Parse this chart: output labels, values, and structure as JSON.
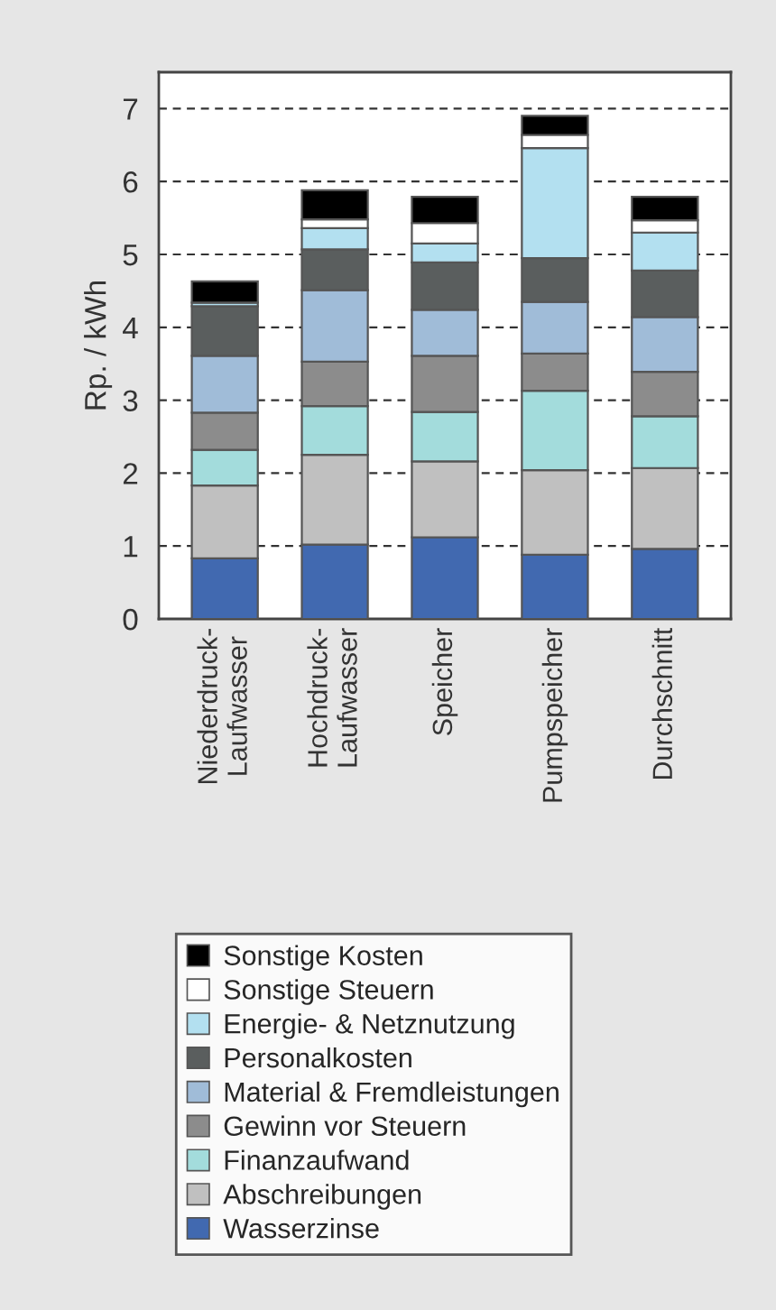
{
  "chart_data": {
    "type": "bar",
    "stacked": true,
    "ylabel": "Rp. / kWh",
    "categories": [
      "Niederdruck-\nLaufwasser",
      "Hochdruck-\nLaufwasser",
      "Speicher",
      "Pumpspeicher",
      "Durchschnitt"
    ],
    "series": [
      {
        "name": "Wasserzinse",
        "color": "#4169b0",
        "values": [
          0.83,
          1.02,
          1.12,
          0.88,
          0.96
        ]
      },
      {
        "name": "Abschreibungen",
        "color": "#c0c0c0",
        "values": [
          1.0,
          1.23,
          1.04,
          1.16,
          1.11
        ]
      },
      {
        "name": "Finanzaufwand",
        "color": "#a3dcdc",
        "values": [
          0.49,
          0.67,
          0.68,
          1.09,
          0.71
        ]
      },
      {
        "name": "Gewinn vor Steuern",
        "color": "#8c8c8c",
        "values": [
          0.51,
          0.61,
          0.77,
          0.51,
          0.61
        ]
      },
      {
        "name": "Material & Fremdleistungen",
        "color": "#a0bcd8",
        "values": [
          0.78,
          0.98,
          0.63,
          0.71,
          0.75
        ]
      },
      {
        "name": "Personalkosten",
        "color": "#5a5e5e",
        "values": [
          0.68,
          0.56,
          0.65,
          0.6,
          0.64
        ]
      },
      {
        "name": "Energie- & Netznutzung",
        "color": "#b3e0f0",
        "values": [
          0.05,
          0.29,
          0.26,
          1.51,
          0.52
        ]
      },
      {
        "name": "Sonstige Steuern",
        "color": "#ffffff",
        "values": [
          null,
          0.12,
          0.28,
          0.18,
          0.17
        ]
      },
      {
        "name": "Sonstige Kosten",
        "color": "#000000",
        "values": [
          0.29,
          0.4,
          0.36,
          0.26,
          0.32
        ]
      }
    ],
    "ylim": [
      0,
      7.5
    ],
    "yticks": [
      0,
      1,
      2,
      3,
      4,
      5,
      6,
      7
    ],
    "grid": "y",
    "legend": "bottom"
  }
}
